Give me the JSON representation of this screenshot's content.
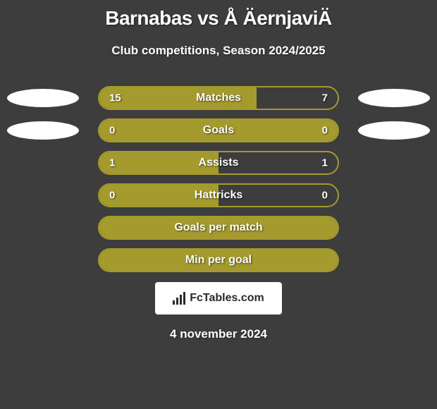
{
  "title": "Barnabas vs Å ÄernjaviÄ",
  "subtitle": "Club competitions, Season 2024/2025",
  "footer_date": "4 november 2024",
  "logo_text": "FcTables.com",
  "colors": {
    "background": "#3d3d3d",
    "bar_border": "#a59a2e",
    "bar_fill": "#a59a2e",
    "text": "#ffffff",
    "ellipse": "#ffffff"
  },
  "stats": [
    {
      "label": "Matches",
      "left_value": "15",
      "right_value": "7",
      "left_fill_pct": 66,
      "full_fill": false,
      "show_left_ellipse": true,
      "show_right_ellipse": true
    },
    {
      "label": "Goals",
      "left_value": "0",
      "right_value": "0",
      "left_fill_pct": 0,
      "full_fill": true,
      "show_left_ellipse": true,
      "show_right_ellipse": true
    },
    {
      "label": "Assists",
      "left_value": "1",
      "right_value": "1",
      "left_fill_pct": 50,
      "full_fill": false,
      "show_left_ellipse": false,
      "show_right_ellipse": false
    },
    {
      "label": "Hattricks",
      "left_value": "0",
      "right_value": "0",
      "left_fill_pct": 50,
      "full_fill": false,
      "show_left_ellipse": false,
      "show_right_ellipse": false
    },
    {
      "label": "Goals per match",
      "left_value": "",
      "right_value": "",
      "left_fill_pct": 0,
      "full_fill": true,
      "show_left_ellipse": false,
      "show_right_ellipse": false
    },
    {
      "label": "Min per goal",
      "left_value": "",
      "right_value": "",
      "left_fill_pct": 0,
      "full_fill": true,
      "show_left_ellipse": false,
      "show_right_ellipse": false
    }
  ]
}
